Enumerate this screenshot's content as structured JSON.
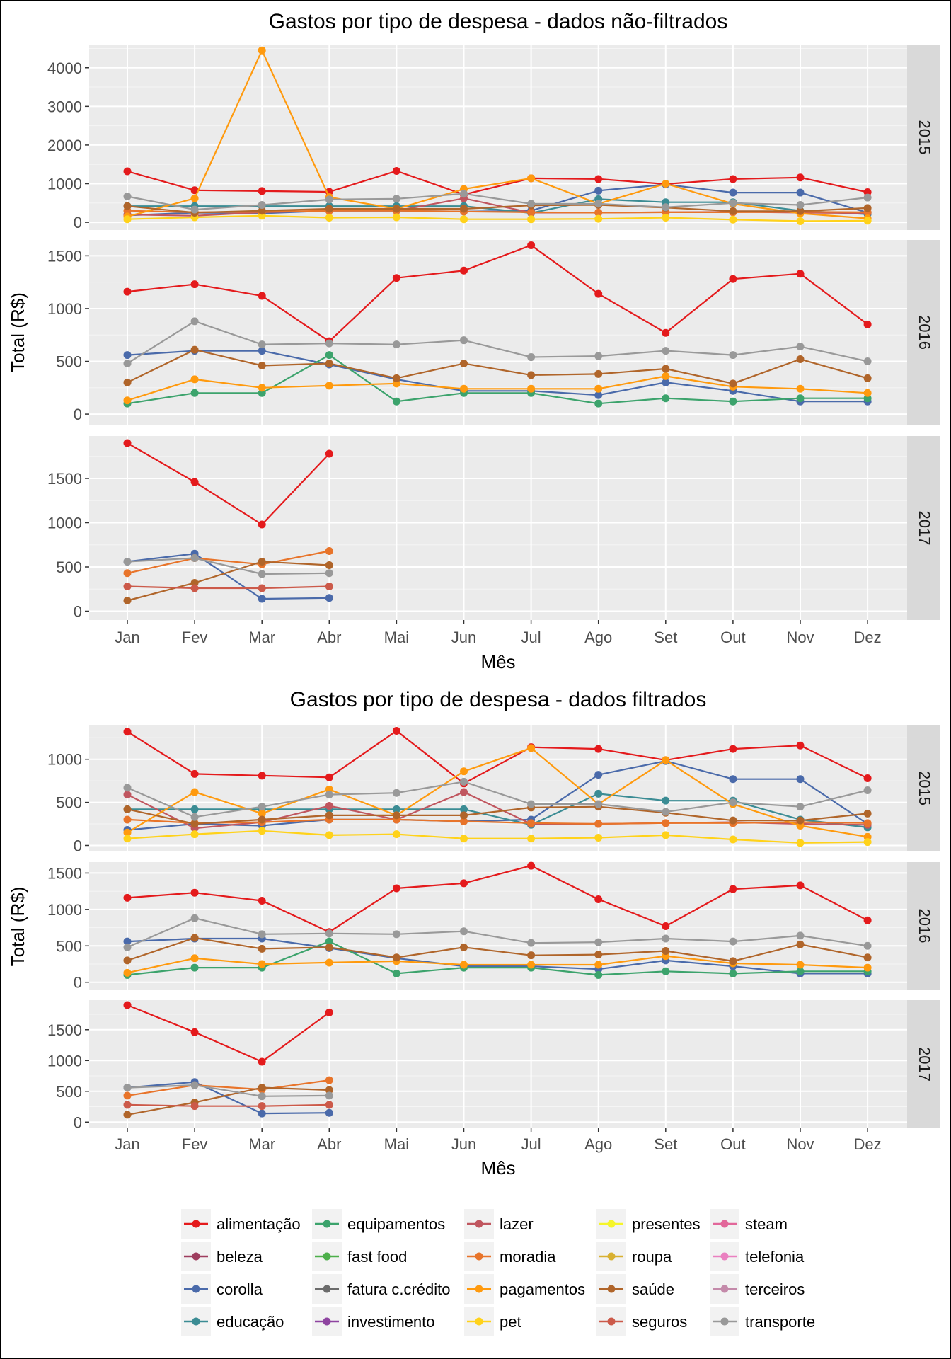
{
  "chart_data": [
    {
      "type": "line",
      "title": "Gastos por tipo de despesa - dados não-filtrados",
      "xlabel": "Mês",
      "ylabel": "Total (R$)",
      "categories": [
        "Jan",
        "Fev",
        "Mar",
        "Abr",
        "Mai",
        "Jun",
        "Jul",
        "Ago",
        "Set",
        "Out",
        "Nov",
        "Dez"
      ],
      "facets": [
        {
          "label": "2015",
          "ylim": [
            -200,
            4600
          ],
          "yticks": [
            0,
            1000,
            2000,
            3000,
            4000
          ],
          "series": [
            {
              "name": "alimentação",
              "values": [
                1320,
                830,
                810,
                790,
                1330,
                720,
                1140,
                1120,
                990,
                1120,
                1160,
                780
              ]
            },
            {
              "name": "corolla",
              "values": [
                180,
                250,
                230,
                300,
                300,
                280,
                300,
                820,
                980,
                770,
                770,
                250
              ]
            },
            {
              "name": "educação",
              "values": [
                420,
                420,
                420,
                420,
                420,
                420,
                240,
                600,
                520,
                520,
                300,
                210
              ]
            },
            {
              "name": "lazer",
              "values": [
                200,
                170,
                260,
                300,
                300,
                620,
                250,
                250,
                260,
                270,
                250,
                240
              ]
            },
            {
              "name": "moradia",
              "values": [
                300,
                260,
                270,
                300,
                300,
                280,
                260,
                250,
                260,
                260,
                270,
                260
              ]
            },
            {
              "name": "pagamentos",
              "values": [
                150,
                620,
                4450,
                650,
                350,
                860,
                1140,
                480,
                1000,
                480,
                230,
                100
              ]
            },
            {
              "name": "pet",
              "values": [
                80,
                130,
                170,
                120,
                130,
                80,
                80,
                90,
                120,
                70,
                30,
                40
              ]
            },
            {
              "name": "saúde",
              "values": [
                420,
                250,
                300,
                350,
                350,
                350,
                440,
                450,
                380,
                290,
                290,
                370
              ]
            },
            {
              "name": "transporte",
              "values": [
                670,
                330,
                450,
                590,
                610,
                740,
                480,
                480,
                390,
                500,
                450,
                640
              ]
            }
          ]
        },
        {
          "label": "2016",
          "ylim": [
            -100,
            1650
          ],
          "yticks": [
            0,
            500,
            1000,
            1500
          ],
          "series": [
            {
              "name": "alimentação",
              "values": [
                1160,
                1230,
                1120,
                690,
                1290,
                1360,
                1600,
                1140,
                770,
                1280,
                1330,
                850
              ]
            },
            {
              "name": "corolla",
              "values": [
                560,
                600,
                600,
                470,
                330,
                220,
                220,
                180,
                300,
                220,
                120,
                120
              ]
            },
            {
              "name": "equipamentos",
              "values": [
                100,
                200,
                200,
                560,
                120,
                200,
                200,
                100,
                150,
                120,
                150,
                150
              ]
            },
            {
              "name": "pagamentos",
              "values": [
                130,
                330,
                250,
                270,
                290,
                240,
                240,
                240,
                360,
                260,
                240,
                200
              ]
            },
            {
              "name": "saúde",
              "values": [
                300,
                610,
                460,
                480,
                340,
                480,
                370,
                380,
                430,
                290,
                520,
                340
              ]
            },
            {
              "name": "transporte",
              "values": [
                480,
                880,
                660,
                670,
                660,
                700,
                540,
                550,
                600,
                560,
                640,
                500
              ]
            }
          ]
        },
        {
          "label": "2017",
          "ylim": [
            -100,
            1980
          ],
          "yticks": [
            0,
            500,
            1000,
            1500
          ],
          "series": [
            {
              "name": "alimentação",
              "values": [
                1900,
                1460,
                980,
                1780
              ]
            },
            {
              "name": "corolla",
              "values": [
                560,
                650,
                140,
                150
              ]
            },
            {
              "name": "moradia",
              "values": [
                430,
                600,
                530,
                680
              ]
            },
            {
              "name": "saúde",
              "values": [
                120,
                320,
                560,
                520
              ]
            },
            {
              "name": "transporte",
              "values": [
                560,
                600,
                420,
                430
              ]
            },
            {
              "name": "seguros",
              "values": [
                280,
                260,
                260,
                280
              ]
            }
          ]
        }
      ]
    },
    {
      "type": "line",
      "title": "Gastos por tipo de despesa - dados filtrados",
      "xlabel": "Mês",
      "ylabel": "Total (R$)",
      "categories": [
        "Jan",
        "Fev",
        "Mar",
        "Abr",
        "Mai",
        "Jun",
        "Jul",
        "Ago",
        "Set",
        "Out",
        "Nov",
        "Dez"
      ],
      "facets": [
        {
          "label": "2015",
          "ylim": [
            -70,
            1400
          ],
          "yticks": [
            0,
            500,
            1000
          ],
          "series": [
            {
              "name": "alimentação",
              "values": [
                1320,
                830,
                810,
                790,
                1330,
                720,
                1140,
                1120,
                990,
                1120,
                1160,
                780
              ]
            },
            {
              "name": "corolla",
              "values": [
                180,
                250,
                230,
                300,
                300,
                280,
                300,
                820,
                980,
                770,
                770,
                250
              ]
            },
            {
              "name": "educação",
              "values": [
                420,
                420,
                420,
                420,
                420,
                420,
                240,
                600,
                520,
                520,
                300,
                210
              ]
            },
            {
              "name": "lazer",
              "values": [
                590,
                200,
                270,
                460,
                300,
                620,
                250,
                250,
                260,
                270,
                250,
                240
              ]
            },
            {
              "name": "moradia",
              "values": [
                300,
                260,
                270,
                300,
                300,
                280,
                260,
                250,
                260,
                260,
                270,
                260
              ]
            },
            {
              "name": "pagamentos",
              "values": [
                150,
                620,
                370,
                650,
                350,
                860,
                1130,
                480,
                990,
                480,
                230,
                100
              ]
            },
            {
              "name": "pet",
              "values": [
                80,
                130,
                170,
                120,
                130,
                80,
                80,
                90,
                120,
                70,
                30,
                40
              ]
            },
            {
              "name": "saúde",
              "values": [
                420,
                250,
                300,
                350,
                350,
                350,
                440,
                450,
                380,
                290,
                290,
                370
              ]
            },
            {
              "name": "transporte",
              "values": [
                670,
                330,
                450,
                590,
                610,
                740,
                480,
                480,
                390,
                500,
                450,
                640
              ]
            }
          ]
        },
        {
          "label": "2016",
          "ylim": [
            -100,
            1650
          ],
          "yticks": [
            0,
            500,
            1000,
            1500
          ],
          "series": [
            {
              "name": "alimentação",
              "values": [
                1160,
                1230,
                1120,
                690,
                1290,
                1360,
                1600,
                1140,
                770,
                1280,
                1330,
                850
              ]
            },
            {
              "name": "corolla",
              "values": [
                560,
                600,
                600,
                470,
                330,
                220,
                220,
                180,
                300,
                220,
                120,
                120
              ]
            },
            {
              "name": "equipamentos",
              "values": [
                100,
                200,
                200,
                560,
                120,
                200,
                200,
                100,
                150,
                120,
                150,
                150
              ]
            },
            {
              "name": "pagamentos",
              "values": [
                130,
                330,
                250,
                270,
                290,
                240,
                240,
                240,
                360,
                260,
                240,
                200
              ]
            },
            {
              "name": "saúde",
              "values": [
                300,
                610,
                460,
                480,
                340,
                480,
                370,
                380,
                430,
                290,
                520,
                340
              ]
            },
            {
              "name": "transporte",
              "values": [
                480,
                880,
                660,
                670,
                660,
                700,
                540,
                550,
                600,
                560,
                640,
                500
              ]
            }
          ]
        },
        {
          "label": "2017",
          "ylim": [
            -100,
            1980
          ],
          "yticks": [
            0,
            500,
            1000,
            1500
          ],
          "series": [
            {
              "name": "alimentação",
              "values": [
                1900,
                1460,
                980,
                1780
              ]
            },
            {
              "name": "corolla",
              "values": [
                560,
                650,
                140,
                150
              ]
            },
            {
              "name": "moradia",
              "values": [
                430,
                600,
                530,
                680
              ]
            },
            {
              "name": "saúde",
              "values": [
                120,
                320,
                560,
                520
              ]
            },
            {
              "name": "transporte",
              "values": [
                560,
                600,
                420,
                430
              ]
            },
            {
              "name": "seguros",
              "values": [
                280,
                260,
                260,
                280
              ]
            }
          ]
        }
      ]
    }
  ],
  "legend": {
    "placement": "bottom",
    "items": [
      {
        "name": "alimentação",
        "color": "#e41a1c"
      },
      {
        "name": "beleza",
        "color": "#9e3d5e"
      },
      {
        "name": "corolla",
        "color": "#4a6aaa"
      },
      {
        "name": "educação",
        "color": "#3b8c94"
      },
      {
        "name": "equipamentos",
        "color": "#3ca36c"
      },
      {
        "name": "fast food",
        "color": "#4daf4a"
      },
      {
        "name": "fatura c.crédito",
        "color": "#6b6b6b"
      },
      {
        "name": "investimento",
        "color": "#8e44a0"
      },
      {
        "name": "lazer",
        "color": "#c0565f"
      },
      {
        "name": "moradia",
        "color": "#e8742a"
      },
      {
        "name": "pagamentos",
        "color": "#ff9a0e"
      },
      {
        "name": "pet",
        "color": "#ffd21a"
      },
      {
        "name": "presentes",
        "color": "#f5f52a"
      },
      {
        "name": "roupa",
        "color": "#d8b030"
      },
      {
        "name": "saúde",
        "color": "#b0652a"
      },
      {
        "name": "seguros",
        "color": "#cc5a4a"
      },
      {
        "name": "steam",
        "color": "#e2679a"
      },
      {
        "name": "telefonia",
        "color": "#ea80c0"
      },
      {
        "name": "terceiros",
        "color": "#c48aaa"
      },
      {
        "name": "transporte",
        "color": "#999999"
      }
    ]
  }
}
